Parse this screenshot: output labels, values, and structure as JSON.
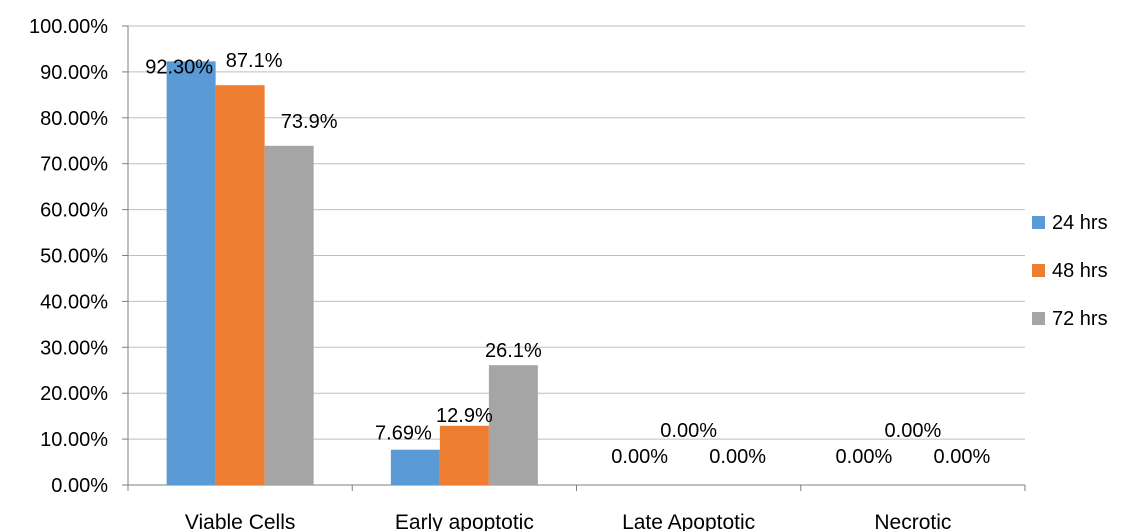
{
  "chart_data": {
    "type": "bar",
    "categories": [
      "Viable Cells",
      "Early apoptotic",
      "Late Apoptotic",
      "Necrotic"
    ],
    "series": [
      {
        "name": "24 hrs",
        "values": [
          92.3,
          7.69,
          0.0,
          0.0
        ],
        "labels": [
          "92.30%",
          "7.69%",
          "0.00%",
          "0.00%"
        ],
        "color": "#5b9bd5"
      },
      {
        "name": "48 hrs",
        "values": [
          87.1,
          12.9,
          0.0,
          0.0
        ],
        "labels": [
          "87.1%",
          "12.9%",
          "0.00%",
          "0.00%"
        ],
        "color": "#ed7d31"
      },
      {
        "name": "72 hrs",
        "values": [
          73.9,
          26.1,
          0.0,
          0.0
        ],
        "labels": [
          "73.9%",
          "26.1%",
          "0.00%",
          "0.00%"
        ],
        "color": "#a5a5a5"
      }
    ],
    "yticks": [
      "0.00%",
      "10.00%",
      "20.00%",
      "30.00%",
      "40.00%",
      "50.00%",
      "60.00%",
      "70.00%",
      "80.00%",
      "90.00%",
      "100.00%"
    ],
    "ylim": [
      0,
      100
    ],
    "grid": true,
    "legend_position": "right",
    "gridline_color": "#bfbfbf"
  }
}
